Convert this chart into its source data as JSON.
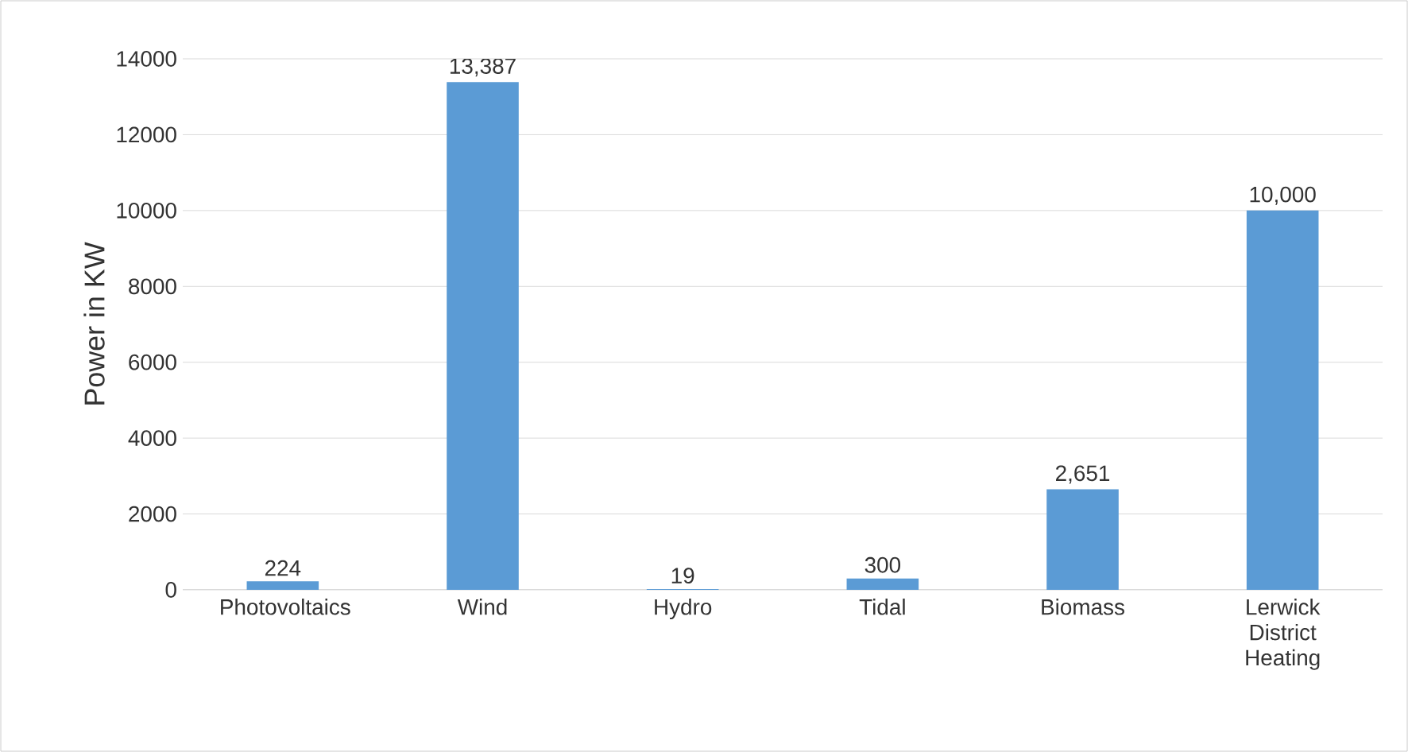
{
  "chart_data": {
    "type": "bar",
    "ylabel": "Power in KW",
    "categories": [
      "Photovoltaics",
      "Wind",
      "Hydro",
      "Tidal",
      "Biomass",
      "Lerwick District Heating"
    ],
    "values": [
      224,
      13387,
      19,
      300,
      2651,
      10000
    ],
    "value_labels": [
      "224",
      "13,387",
      "19",
      "300",
      "2,651",
      "10,000"
    ],
    "color": "#5b9bd5",
    "ylim": [
      0,
      14000
    ],
    "yticks": [
      0,
      2000,
      4000,
      6000,
      8000,
      10000,
      12000,
      14000
    ],
    "grid": "y"
  }
}
